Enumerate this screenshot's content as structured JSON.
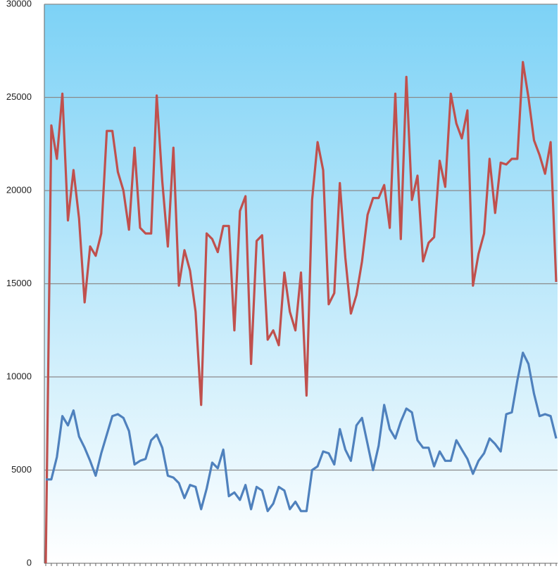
{
  "chart_data": {
    "type": "line",
    "ylim": [
      0,
      30000
    ],
    "yticks": [
      0,
      5000,
      10000,
      15000,
      20000,
      25000,
      30000
    ],
    "grid": true,
    "series": [
      {
        "name": null,
        "color": "#c0504d",
        "values": [
          0,
          23500,
          21700,
          25200,
          18400,
          21100,
          18500,
          14000,
          17000,
          16500,
          17700,
          23200,
          23200,
          21000,
          20000,
          17900,
          22300,
          18000,
          17700,
          17700,
          25100,
          20500,
          17000,
          22300,
          14900,
          16800,
          15700,
          13500,
          8500,
          17700,
          17400,
          16700,
          18100,
          18100,
          12500,
          18900,
          19700,
          10700,
          17300,
          17600,
          12000,
          12500,
          11700,
          15600,
          13500,
          12500,
          15600,
          9000,
          19500,
          22600,
          21100,
          13900,
          14500,
          20400,
          16400,
          13400,
          14400,
          16200,
          18700,
          19600,
          19600,
          20300,
          18000,
          25200,
          17400,
          26100,
          19500,
          20800,
          16200,
          17200,
          17500,
          21600,
          20200,
          25200,
          23600,
          22800,
          24300,
          14900,
          16600,
          17700,
          21700,
          18800,
          21500,
          21400,
          21700,
          21700,
          26900,
          25000,
          22700,
          21900,
          20900,
          22600,
          15100
        ]
      },
      {
        "name": null,
        "color": "#4f81bd",
        "values": [
          4500,
          4500,
          5700,
          7900,
          7400,
          8200,
          6800,
          6200,
          5500,
          4700,
          5900,
          6900,
          7900,
          8000,
          7800,
          7100,
          5300,
          5500,
          5600,
          6600,
          6900,
          6200,
          4700,
          4600,
          4300,
          3500,
          4200,
          4100,
          2900,
          4000,
          5400,
          5100,
          6100,
          3600,
          3800,
          3400,
          4200,
          2900,
          4100,
          3900,
          2800,
          3200,
          4100,
          3900,
          2900,
          3300,
          2800,
          2800,
          5000,
          5200,
          6000,
          5900,
          5300,
          7200,
          6100,
          5500,
          7400,
          7800,
          6400,
          5000,
          6300,
          8500,
          7200,
          6700,
          7600,
          8300,
          8100,
          6600,
          6200,
          6200,
          5200,
          6000,
          5500,
          5500,
          6600,
          6100,
          5600,
          4800,
          5500,
          5900,
          6700,
          6400,
          6000,
          8000,
          8100,
          9800,
          11300,
          10700,
          9100,
          7900,
          8000,
          7900,
          6700
        ]
      }
    ]
  }
}
